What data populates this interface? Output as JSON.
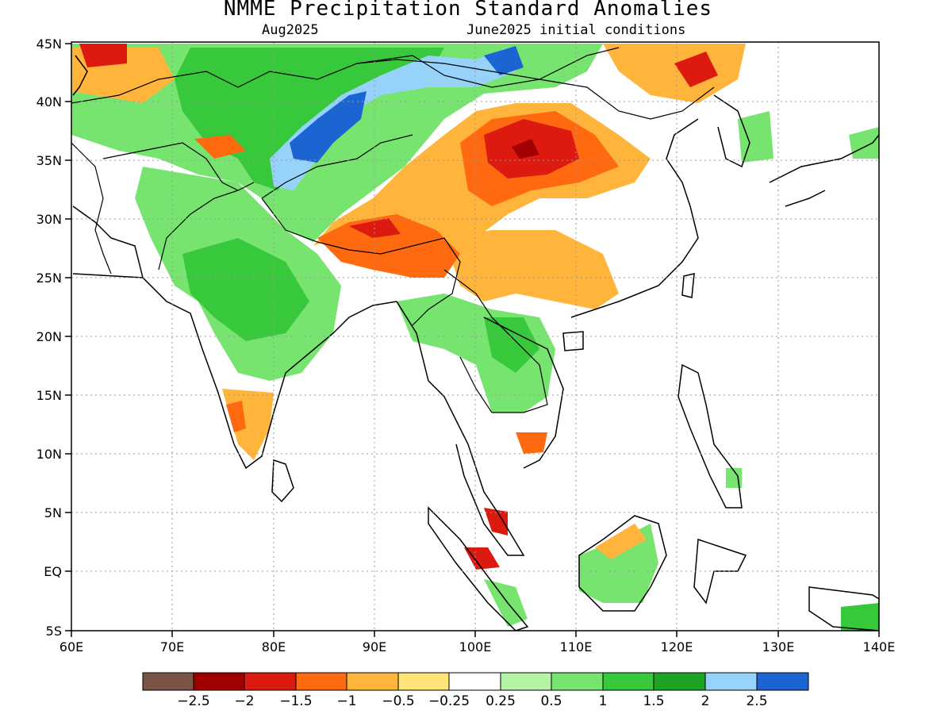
{
  "title": "NMME Precipitation Standard Anomalies",
  "subtitle_left": "Aug2025",
  "subtitle_right": "June2025 initial conditions",
  "lat_labels": [
    "45N",
    "40N",
    "35N",
    "30N",
    "25N",
    "20N",
    "15N",
    "10N",
    "5N",
    "EQ",
    "5S"
  ],
  "lon_labels": [
    "60E",
    "70E",
    "80E",
    "90E",
    "100E",
    "110E",
    "120E",
    "130E",
    "140E"
  ],
  "legend": {
    "colors": [
      "#7b5448",
      "#a00000",
      "#dd1a10",
      "#ff6a10",
      "#ffb43b",
      "#ffe477",
      "#ffffff",
      "#b4f4a4",
      "#78e470",
      "#37c83c",
      "#1ea424",
      "#96d2fa",
      "#1c64d2"
    ],
    "labels": [
      "−2.5",
      "−2",
      "−1.5",
      "−1",
      "−0.5",
      "−0.25",
      "0.25",
      "0.5",
      "1",
      "1.5",
      "2",
      "2.5"
    ]
  }
}
